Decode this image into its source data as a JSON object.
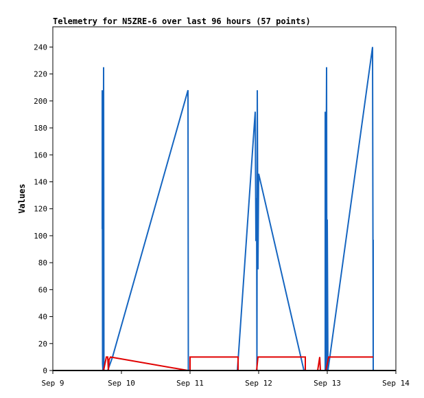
{
  "chart_data": {
    "type": "line",
    "title": "Telemetry for N5ZRE-6 over last 96 hours (57 points)",
    "xlabel": "",
    "ylabel": "Values",
    "xlim": [
      9,
      14
    ],
    "ylim": [
      0,
      255
    ],
    "x_ticks": [
      {
        "value": 9,
        "label": "Sep 9"
      },
      {
        "value": 10,
        "label": "Sep 10"
      },
      {
        "value": 11,
        "label": "Sep 11"
      },
      {
        "value": 12,
        "label": "Sep 12"
      },
      {
        "value": 13,
        "label": "Sep 13"
      },
      {
        "value": 14,
        "label": "Sep 14"
      }
    ],
    "y_ticks": [
      0,
      20,
      40,
      60,
      80,
      100,
      120,
      140,
      160,
      180,
      200,
      220,
      240
    ],
    "grid": false,
    "legend": "none",
    "series": [
      {
        "color": "#1565c0",
        "points": [
          [
            9.72,
            105
          ],
          [
            9.72,
            208
          ],
          [
            9.725,
            5
          ],
          [
            9.73,
            0
          ],
          [
            9.74,
            225
          ],
          [
            9.745,
            0
          ],
          [
            9.8,
            0
          ],
          [
            9.87,
            10
          ],
          [
            10.97,
            208
          ],
          [
            10.975,
            0
          ],
          [
            11.0,
            0
          ],
          [
            11.69,
            0
          ],
          [
            11.95,
            192
          ],
          [
            11.96,
            96
          ],
          [
            11.97,
            128
          ],
          [
            11.975,
            0
          ],
          [
            11.98,
            208
          ],
          [
            11.99,
            75
          ],
          [
            12.0,
            146
          ],
          [
            12.66,
            0
          ],
          [
            12.97,
            0
          ],
          [
            12.97,
            192
          ],
          [
            12.975,
            0
          ],
          [
            12.98,
            98
          ],
          [
            12.99,
            225
          ],
          [
            12.995,
            0
          ],
          [
            13.0,
            112
          ],
          [
            13.01,
            0
          ],
          [
            13.66,
            240
          ],
          [
            13.67,
            0
          ],
          [
            13.67,
            97
          ]
        ]
      },
      {
        "color": "#e00000",
        "points": [
          [
            9.74,
            0
          ],
          [
            9.76,
            5
          ],
          [
            9.78,
            10
          ],
          [
            9.8,
            10
          ],
          [
            9.81,
            0
          ],
          [
            9.82,
            8
          ],
          [
            9.84,
            10
          ],
          [
            10.97,
            0
          ],
          [
            11.0,
            0
          ],
          [
            11.0,
            10
          ],
          [
            11.7,
            10
          ],
          [
            11.7,
            0
          ],
          [
            11.72,
            0
          ],
          [
            11.97,
            0
          ],
          [
            11.99,
            10
          ],
          [
            12.68,
            10
          ],
          [
            12.68,
            0
          ],
          [
            12.7,
            0
          ],
          [
            12.86,
            0
          ],
          [
            12.89,
            10
          ],
          [
            12.9,
            0
          ],
          [
            12.98,
            0
          ],
          [
            13.02,
            10
          ],
          [
            13.67,
            10
          ]
        ]
      },
      {
        "color": "#000000",
        "points": [
          [
            9.0,
            0
          ],
          [
            14.0,
            0
          ]
        ]
      }
    ]
  }
}
